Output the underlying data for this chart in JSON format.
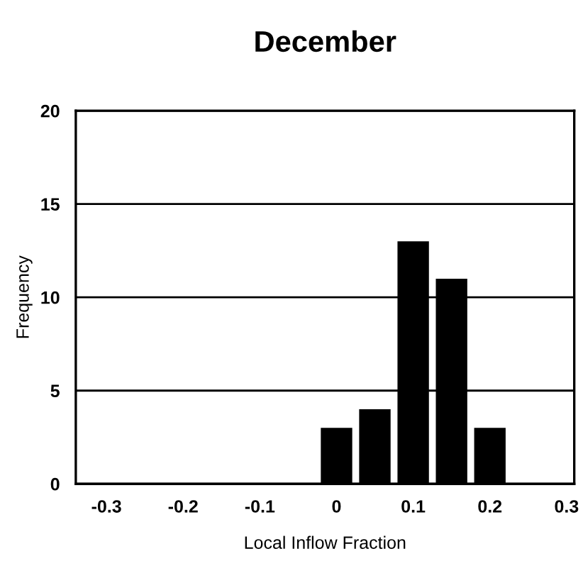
{
  "chart_data": {
    "type": "histogram",
    "title": "December",
    "xlabel": "Local Inflow Fraction",
    "ylabel": "Frequency",
    "bins": [
      -0.025,
      0.025,
      0.075,
      0.125,
      0.175,
      0.225
    ],
    "values": [
      3,
      4,
      13,
      11,
      3
    ],
    "color": "#000000",
    "xlim": [
      -0.34,
      0.31
    ],
    "xticks": [
      -0.3,
      -0.2,
      -0.1,
      0,
      0.1,
      0.2,
      0.3
    ],
    "ylim": [
      0,
      20
    ],
    "yticks": [
      0,
      5,
      10,
      15,
      20
    ],
    "grid": "y",
    "legend": false
  }
}
